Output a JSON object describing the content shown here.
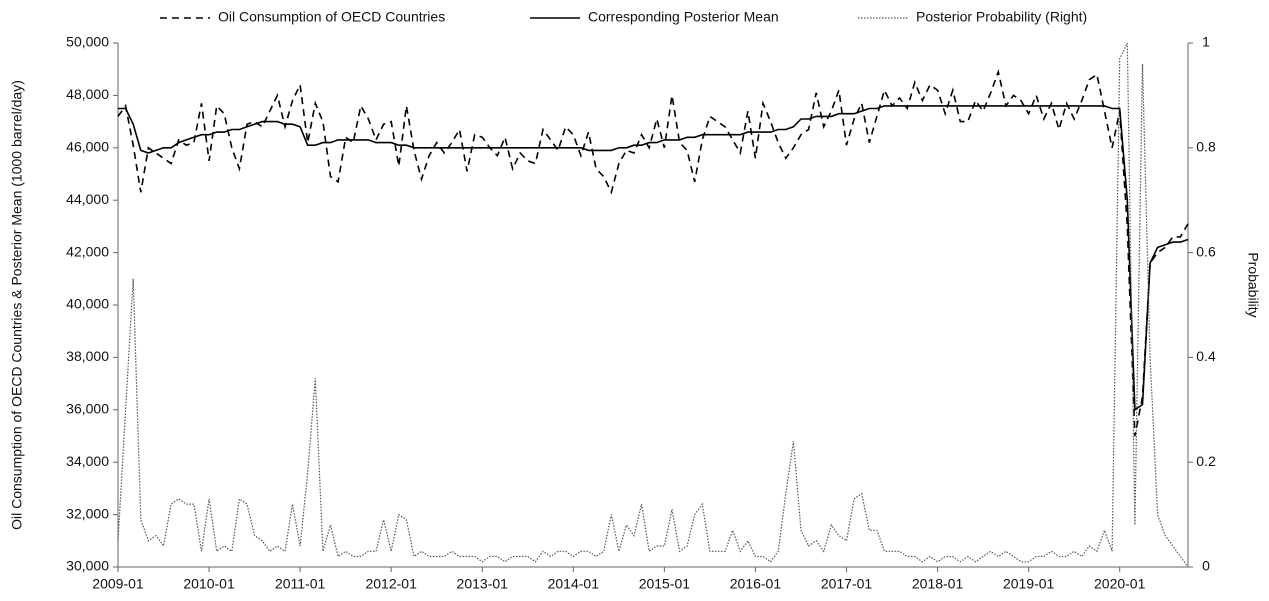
{
  "chart_data": {
    "type": "line",
    "legend": "top",
    "y_label": "Oil Consumption of OECD Countries & Posterior Mean (1000 barrel/day)",
    "y2_label": "Probability",
    "categories": [
      "2009-01",
      null,
      null,
      null,
      null,
      null,
      null,
      null,
      null,
      null,
      null,
      null,
      "2010-01",
      null,
      null,
      null,
      null,
      null,
      null,
      null,
      null,
      null,
      null,
      null,
      "2011-01",
      null,
      null,
      null,
      null,
      null,
      null,
      null,
      null,
      null,
      null,
      null,
      "2012-01",
      null,
      null,
      null,
      null,
      null,
      null,
      null,
      null,
      null,
      null,
      null,
      "2013-01",
      null,
      null,
      null,
      null,
      null,
      null,
      null,
      null,
      null,
      null,
      null,
      "2014-01",
      null,
      null,
      null,
      null,
      null,
      null,
      null,
      null,
      null,
      null,
      null,
      "2015-01",
      null,
      null,
      null,
      null,
      null,
      null,
      null,
      null,
      null,
      null,
      null,
      "2016-01",
      null,
      null,
      null,
      null,
      null,
      null,
      null,
      null,
      null,
      null,
      null,
      "2017-01",
      null,
      null,
      null,
      null,
      null,
      null,
      null,
      null,
      null,
      null,
      null,
      "2018-01",
      null,
      null,
      null,
      null,
      null,
      null,
      null,
      null,
      null,
      null,
      null,
      "2019-01",
      null,
      null,
      null,
      null,
      null,
      null,
      null,
      null,
      null,
      null,
      null,
      "2020-01",
      null,
      null,
      null,
      null,
      null,
      null,
      null,
      null,
      null
    ],
    "ylim": [
      30000,
      50000
    ],
    "yticks": [
      {
        "value": 30000,
        "label": "30,000"
      },
      {
        "value": 32000,
        "label": "32,000"
      },
      {
        "value": 34000,
        "label": "34,000"
      },
      {
        "value": 36000,
        "label": "36,000"
      },
      {
        "value": 38000,
        "label": "38,000"
      },
      {
        "value": 40000,
        "label": "40,000"
      },
      {
        "value": 42000,
        "label": "42,000"
      },
      {
        "value": 44000,
        "label": "44,000"
      },
      {
        "value": 46000,
        "label": "46,000"
      },
      {
        "value": 48000,
        "label": "48,000"
      },
      {
        "value": 50000,
        "label": "50,000"
      }
    ],
    "y2lim": [
      0,
      1
    ],
    "y2ticks": [
      0,
      0.2,
      0.4,
      0.6,
      0.8,
      1
    ],
    "series": [
      {
        "name": "Oil Consumption of OECD Countries",
        "color": "#000000",
        "line_style": "dashed",
        "values": [
          47200,
          47600,
          46100,
          44300,
          46000,
          45800,
          45600,
          45400,
          46300,
          46100,
          46200,
          47700,
          45500,
          47600,
          47300,
          46000,
          45200,
          46900,
          47000,
          46800,
          47400,
          48000,
          46800,
          47800,
          48400,
          46200,
          47700,
          47000,
          44900,
          44700,
          46400,
          46200,
          47600,
          47100,
          46300,
          46900,
          47000,
          45300,
          47600,
          45900,
          44800,
          45700,
          46200,
          45800,
          46200,
          46700,
          45100,
          46500,
          46400,
          46000,
          45700,
          46400,
          45200,
          45800,
          45500,
          45400,
          46700,
          46300,
          45900,
          46800,
          46500,
          45700,
          46600,
          45200,
          44900,
          44300,
          45400,
          45900,
          45800,
          46500,
          46000,
          47100,
          46000,
          48000,
          46200,
          45900,
          44700,
          46300,
          47200,
          47000,
          46800,
          46300,
          45800,
          47400,
          45600,
          47700,
          47000,
          46200,
          45600,
          46000,
          46500,
          46700,
          48100,
          46800,
          47400,
          48200,
          46100,
          47100,
          47700,
          46200,
          47200,
          48200,
          47600,
          47900,
          47500,
          48500,
          47800,
          48400,
          48200,
          47300,
          48200,
          47000,
          47000,
          47800,
          47400,
          48100,
          48900,
          47600,
          48000,
          47800,
          47300,
          48000,
          47100,
          47700,
          46700,
          47700,
          47100,
          47800,
          48600,
          48800,
          47400,
          46000,
          47400,
          43000,
          35000,
          36500,
          41600,
          42000,
          42200,
          42600,
          42600,
          43100
        ]
      },
      {
        "name": "Corresponding Posterior Mean",
        "color": "#000000",
        "line_style": "solid",
        "values": [
          47500,
          47500,
          46900,
          45900,
          45800,
          45900,
          46000,
          46000,
          46200,
          46300,
          46400,
          46500,
          46500,
          46600,
          46600,
          46700,
          46700,
          46800,
          46900,
          47000,
          47000,
          47000,
          46900,
          46900,
          46800,
          46100,
          46100,
          46200,
          46200,
          46300,
          46300,
          46300,
          46300,
          46300,
          46200,
          46200,
          46200,
          46100,
          46100,
          46000,
          46000,
          46000,
          46000,
          46000,
          46000,
          46000,
          46000,
          46000,
          46000,
          46000,
          46000,
          46000,
          46000,
          46000,
          46000,
          46000,
          46000,
          46000,
          46000,
          46000,
          46000,
          46000,
          45900,
          45900,
          45900,
          45900,
          46000,
          46000,
          46100,
          46100,
          46200,
          46200,
          46300,
          46300,
          46300,
          46400,
          46400,
          46500,
          46500,
          46500,
          46500,
          46500,
          46500,
          46600,
          46600,
          46600,
          46600,
          46700,
          46700,
          46800,
          47100,
          47100,
          47200,
          47200,
          47200,
          47300,
          47300,
          47300,
          47400,
          47500,
          47500,
          47600,
          47600,
          47600,
          47600,
          47600,
          47600,
          47600,
          47600,
          47600,
          47600,
          47600,
          47600,
          47600,
          47600,
          47600,
          47600,
          47600,
          47600,
          47600,
          47600,
          47600,
          47600,
          47600,
          47600,
          47600,
          47600,
          47600,
          47600,
          47600,
          47600,
          47500,
          47500,
          44000,
          36000,
          36200,
          41600,
          42200,
          42300,
          42400,
          42400,
          42500
        ]
      },
      {
        "name": "Posterior Probability (Right)",
        "color": "#555555",
        "line_style": "dotted",
        "axis": "y2",
        "values": [
          0.05,
          0.3,
          0.55,
          0.09,
          0.05,
          0.06,
          0.04,
          0.12,
          0.13,
          0.12,
          0.12,
          0.03,
          0.13,
          0.03,
          0.04,
          0.03,
          0.13,
          0.12,
          0.06,
          0.05,
          0.03,
          0.04,
          0.03,
          0.12,
          0.04,
          0.18,
          0.36,
          0.03,
          0.08,
          0.02,
          0.03,
          0.02,
          0.02,
          0.03,
          0.03,
          0.09,
          0.03,
          0.1,
          0.09,
          0.02,
          0.03,
          0.02,
          0.02,
          0.02,
          0.03,
          0.02,
          0.02,
          0.02,
          0.01,
          0.02,
          0.02,
          0.01,
          0.02,
          0.02,
          0.02,
          0.01,
          0.03,
          0.02,
          0.03,
          0.03,
          0.02,
          0.03,
          0.03,
          0.02,
          0.03,
          0.1,
          0.03,
          0.08,
          0.06,
          0.12,
          0.03,
          0.04,
          0.04,
          0.11,
          0.03,
          0.04,
          0.1,
          0.12,
          0.03,
          0.03,
          0.03,
          0.07,
          0.03,
          0.05,
          0.02,
          0.02,
          0.01,
          0.03,
          0.14,
          0.24,
          0.07,
          0.04,
          0.05,
          0.03,
          0.08,
          0.06,
          0.05,
          0.13,
          0.14,
          0.07,
          0.07,
          0.03,
          0.03,
          0.03,
          0.02,
          0.02,
          0.01,
          0.02,
          0.01,
          0.02,
          0.02,
          0.01,
          0.02,
          0.01,
          0.02,
          0.03,
          0.02,
          0.03,
          0.02,
          0.01,
          0.01,
          0.02,
          0.02,
          0.03,
          0.02,
          0.02,
          0.03,
          0.02,
          0.04,
          0.03,
          0.07,
          0.03,
          0.97,
          1,
          0.08,
          0.96,
          0.4,
          0.1,
          0.06,
          0.04,
          0.02,
          0
        ]
      }
    ]
  }
}
